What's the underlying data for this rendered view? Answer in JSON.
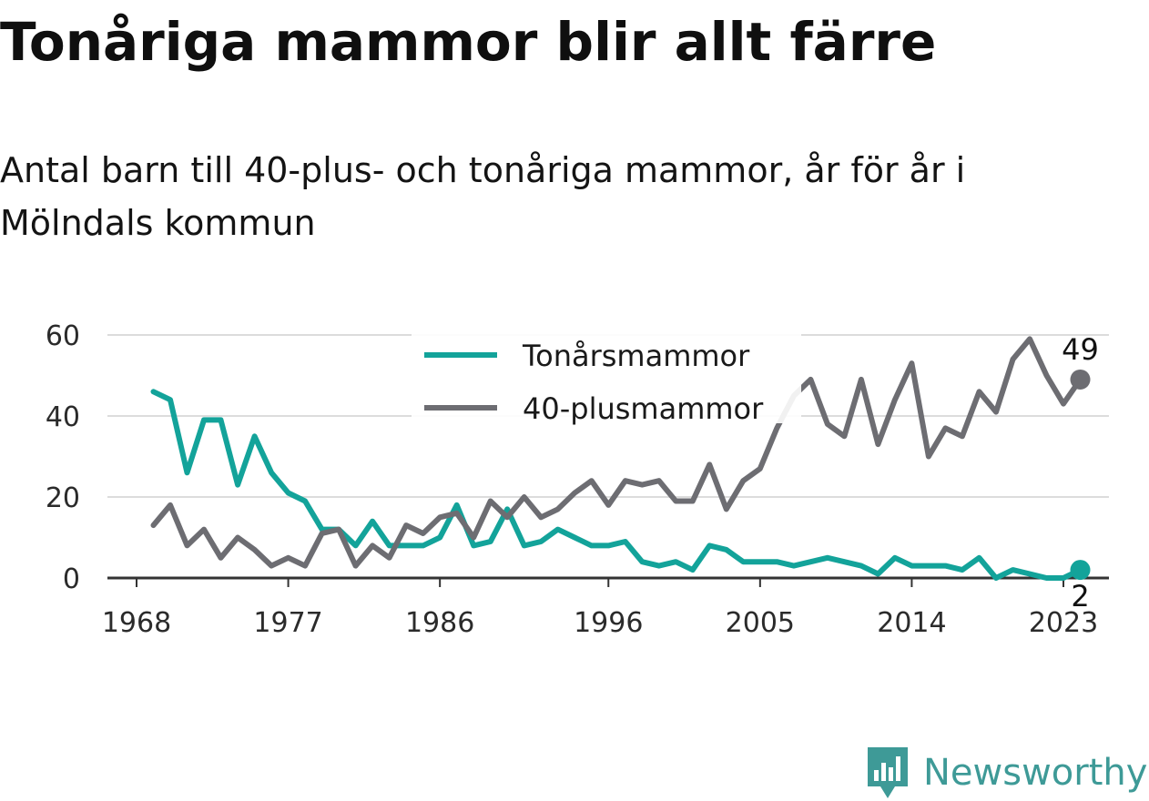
{
  "header": {
    "title": "Tonåriga mammor blir allt färre",
    "subtitle": "Antal barn till 40-plus- och tonåriga mammor, år för år i Mölndals kommun"
  },
  "brand": {
    "name": "Newsworthy",
    "color": "#3e9a97"
  },
  "chart_data": {
    "type": "line",
    "title": "Tonåriga mammor blir allt färre",
    "subtitle": "Antal barn till 40-plus- och tonåriga mammor, år för år i Mölndals kommun",
    "xlabel": "",
    "ylabel": "",
    "xlim": [
      1967,
      2025
    ],
    "ylim": [
      0,
      60
    ],
    "x_ticks": [
      1968,
      1977,
      1986,
      1996,
      2005,
      2014,
      2023
    ],
    "y_ticks": [
      0,
      20,
      40,
      60
    ],
    "grid": "horizontal",
    "legend_position": "top-center",
    "x": [
      1969,
      1970,
      1971,
      1972,
      1973,
      1974,
      1975,
      1976,
      1977,
      1978,
      1979,
      1980,
      1981,
      1982,
      1983,
      1984,
      1985,
      1986,
      1987,
      1988,
      1989,
      1990,
      1991,
      1992,
      1993,
      1994,
      1995,
      1996,
      1997,
      1998,
      1999,
      2000,
      2001,
      2002,
      2003,
      2004,
      2005,
      2006,
      2007,
      2008,
      2009,
      2010,
      2011,
      2012,
      2013,
      2014,
      2015,
      2016,
      2017,
      2018,
      2019,
      2020,
      2021,
      2022,
      2023,
      2024
    ],
    "series": [
      {
        "name": "Tonårsmammor",
        "color": "#13a39a",
        "values": [
          46,
          44,
          26,
          39,
          39,
          23,
          35,
          26,
          21,
          19,
          12,
          12,
          8,
          14,
          8,
          8,
          8,
          10,
          18,
          8,
          9,
          17,
          8,
          9,
          12,
          10,
          8,
          8,
          9,
          4,
          3,
          4,
          2,
          8,
          7,
          4,
          4,
          4,
          3,
          4,
          5,
          4,
          3,
          1,
          5,
          3,
          3,
          3,
          2,
          5,
          0,
          2,
          1,
          0,
          0,
          2
        ],
        "end_label": "2"
      },
      {
        "name": "40-plusmammor",
        "color": "#6d6d72",
        "values": [
          13,
          18,
          8,
          12,
          5,
          10,
          7,
          3,
          5,
          3,
          11,
          12,
          3,
          8,
          5,
          13,
          11,
          15,
          16,
          10,
          19,
          15,
          20,
          15,
          17,
          21,
          24,
          18,
          24,
          23,
          24,
          19,
          19,
          28,
          17,
          24,
          27,
          37,
          45,
          49,
          38,
          35,
          49,
          33,
          44,
          53,
          30,
          37,
          35,
          46,
          41,
          54,
          59,
          50,
          43,
          49
        ],
        "end_label": "49"
      }
    ]
  }
}
